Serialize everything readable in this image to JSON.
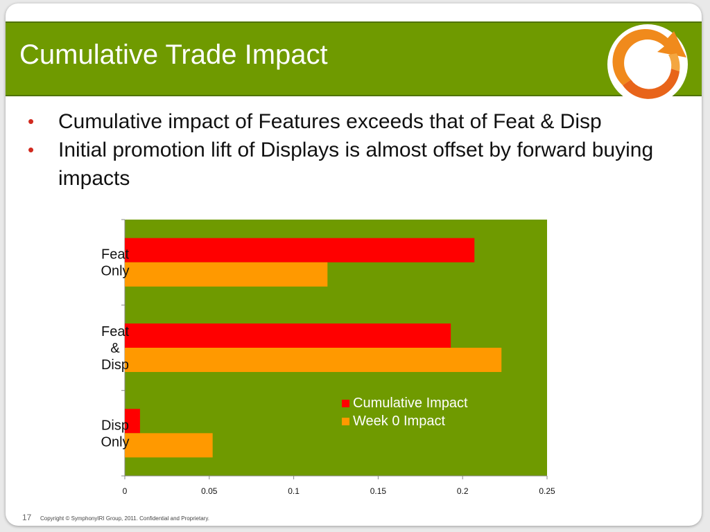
{
  "slide": {
    "title": "Cumulative Trade Impact",
    "bullets": [
      {
        "text": "Cumulative impact of Features exceeds that of Feat & Disp"
      },
      {
        "text": "Initial promotion lift of Displays is almost offset by forward buying impacts"
      }
    ],
    "bullet_glyph": "•",
    "page_number": "17",
    "copyright": "Copyright © SymphonyIRI Group, 2011. Confidential and Proprietary.",
    "logo_icon": "orange-circle-arrow-logo"
  },
  "colors": {
    "title_bar": "#6f9a00",
    "plot_background": "#6f9a00",
    "bullet": "#d12a1f"
  },
  "chart_data": {
    "type": "bar",
    "orientation": "horizontal",
    "categories": [
      [
        "Feat",
        "Only"
      ],
      [
        "Feat",
        "&",
        "Disp"
      ],
      [
        "Disp",
        "Only"
      ]
    ],
    "series": [
      {
        "name": "Cumulative Impact",
        "color": "#ff0000",
        "values": [
          0.207,
          0.193,
          0.009
        ]
      },
      {
        "name": "Week 0 Impact",
        "color": "#ff9900",
        "values": [
          0.12,
          0.223,
          0.052
        ]
      }
    ],
    "xlim": [
      0,
      0.25
    ],
    "xticks": [
      "0",
      "0.05",
      "0.1",
      "0.15",
      "0.2",
      "0.25"
    ],
    "grid": false,
    "legend_position": "inside-lower-right"
  }
}
